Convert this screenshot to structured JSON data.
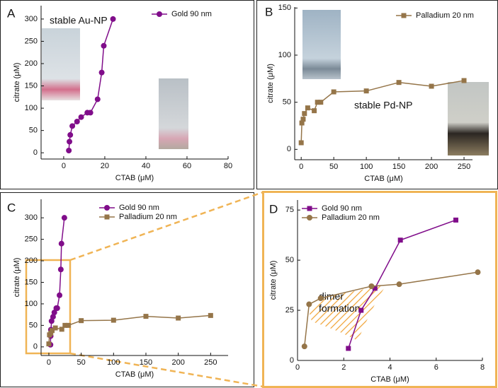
{
  "chart_data": [
    {
      "type": "line",
      "panel": "A",
      "annotation": "stable Au-NP",
      "x_label": "CTAB (μM)",
      "y_label": "citrate (μM)",
      "xlim": [
        -11,
        80
      ],
      "xticks": [
        0,
        20,
        40,
        60,
        80
      ],
      "ylim": [
        -14,
        330
      ],
      "yticks": [
        0,
        50,
        100,
        150,
        200,
        250,
        300
      ],
      "legend": "upper right",
      "series": [
        {
          "name": "Gold 90 nm",
          "color": "#800d8a",
          "marker": "circle",
          "x": [
            2.5,
            2.8,
            3.2,
            4.2,
            6.5,
            8.5,
            11.5,
            13,
            16.5,
            18.5,
            19.5,
            24
          ],
          "values": [
            5,
            25,
            40,
            60,
            70,
            80,
            90,
            90,
            120,
            180,
            240,
            300
          ]
        }
      ]
    },
    {
      "type": "line",
      "panel": "B",
      "annotation": "stable Pd-NP",
      "x_label": "CTAB (μM)",
      "y_label": "citrate (μM)",
      "xlim": [
        -10,
        263
      ],
      "xticks": [
        0,
        50,
        100,
        150,
        200,
        250
      ],
      "ylim": [
        -11,
        151
      ],
      "yticks": [
        0,
        50,
        100,
        150
      ],
      "legend": "upper right",
      "series": [
        {
          "name": "Palladium 20 nm",
          "color": "#957549",
          "marker": "square",
          "x": [
            0,
            1,
            3,
            5,
            10,
            20,
            25,
            30,
            50,
            100,
            150,
            200,
            250
          ],
          "values": [
            7,
            28,
            32,
            38,
            44,
            41,
            50,
            50,
            61,
            62,
            71,
            67,
            73
          ]
        }
      ]
    },
    {
      "type": "line",
      "panel": "C",
      "x_label": "CTAB (μM)",
      "y_label": "citrate (μM)",
      "xlim": [
        -12,
        277
      ],
      "xticks": [
        0,
        50,
        100,
        150,
        200,
        250
      ],
      "ylim": [
        -20,
        343
      ],
      "yticks": [
        0,
        50,
        100,
        150,
        200,
        250,
        300
      ],
      "legend": "upper center",
      "series": [
        {
          "name": "Gold 90 nm",
          "color": "#800d8a",
          "marker": "circle",
          "x": [
            2.5,
            2.8,
            3.2,
            4.2,
            6.5,
            8.5,
            11.5,
            13,
            16.5,
            18.5,
            19.5,
            24
          ],
          "values": [
            5,
            25,
            40,
            60,
            70,
            80,
            90,
            90,
            120,
            180,
            240,
            300
          ]
        },
        {
          "name": "Palladium 20 nm",
          "color": "#957549",
          "marker": "square",
          "x": [
            0,
            1,
            3,
            5,
            10,
            20,
            25,
            30,
            50,
            100,
            150,
            200,
            250
          ],
          "values": [
            7,
            28,
            32,
            38,
            44,
            41,
            50,
            50,
            61,
            62,
            71,
            67,
            73
          ]
        }
      ]
    },
    {
      "type": "line",
      "panel": "D",
      "annotation": "dimer formation",
      "x_label": "CTAB (μM)",
      "y_label": "citrate (μM)",
      "xlim": [
        0,
        8
      ],
      "xticks": [
        0,
        2,
        4,
        6,
        8
      ],
      "ylim": [
        0,
        80
      ],
      "yticks": [
        0,
        25,
        50,
        75
      ],
      "legend": "upper left",
      "series": [
        {
          "name": "Gold 90 nm",
          "color": "#800d8a",
          "marker": "square",
          "x": [
            2.2,
            2.75,
            3.35,
            4.45,
            6.85
          ],
          "values": [
            6,
            25,
            36,
            60,
            70
          ]
        },
        {
          "name": "Palladium 20 nm",
          "color": "#957549",
          "marker": "circle",
          "x": [
            0.3,
            0.5,
            1,
            3.2,
            4.4,
            7.8
          ],
          "values": [
            7,
            28,
            31,
            37,
            38,
            44
          ]
        }
      ]
    }
  ]
}
